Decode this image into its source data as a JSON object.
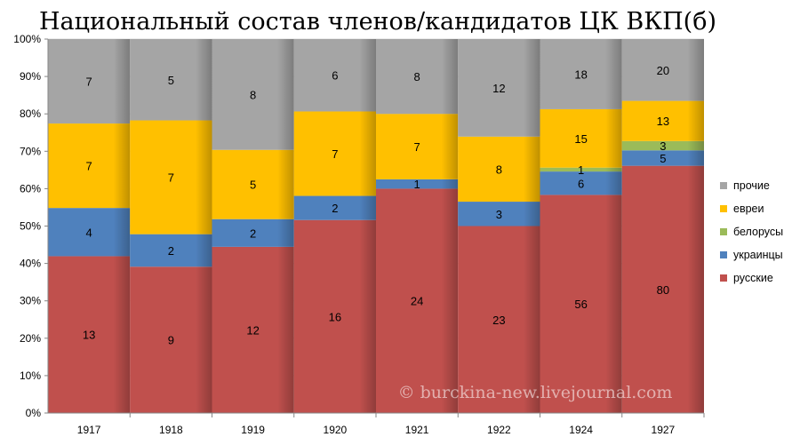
{
  "chart_data": {
    "type": "bar",
    "stacked": "percent",
    "title": "Национальный состав членов/кандидатов ЦК ВКП(б)",
    "xlabel": "",
    "ylabel": "",
    "ylim": [
      0,
      100
    ],
    "y_ticks": [
      "0%",
      "10%",
      "20%",
      "30%",
      "40%",
      "50%",
      "60%",
      "70%",
      "80%",
      "90%",
      "100%"
    ],
    "categories": [
      "1917",
      "1918",
      "1919",
      "1920",
      "1921",
      "1922",
      "1924",
      "1927"
    ],
    "series": [
      {
        "name": "русские",
        "color": "#c0504d",
        "values": [
          13,
          9,
          12,
          16,
          24,
          23,
          56,
          80
        ]
      },
      {
        "name": "украинцы",
        "color": "#4f81bd",
        "values": [
          4,
          2,
          2,
          2,
          1,
          3,
          6,
          5
        ]
      },
      {
        "name": "белорусы",
        "color": "#9bbb59",
        "values": [
          0,
          0,
          0,
          0,
          0,
          0,
          1,
          3
        ]
      },
      {
        "name": "евреи",
        "color": "#ffc000",
        "values": [
          7,
          7,
          5,
          7,
          7,
          8,
          15,
          13
        ]
      },
      {
        "name": "прочие",
        "color": "#a5a5a5",
        "values": [
          7,
          5,
          8,
          6,
          8,
          12,
          18,
          20
        ]
      }
    ],
    "legend_order": [
      "прочие",
      "евреи",
      "белорусы",
      "украинцы",
      "русские"
    ],
    "legend_position": "right",
    "grid": true,
    "watermark": "© burckina-new.livejournal.com"
  }
}
